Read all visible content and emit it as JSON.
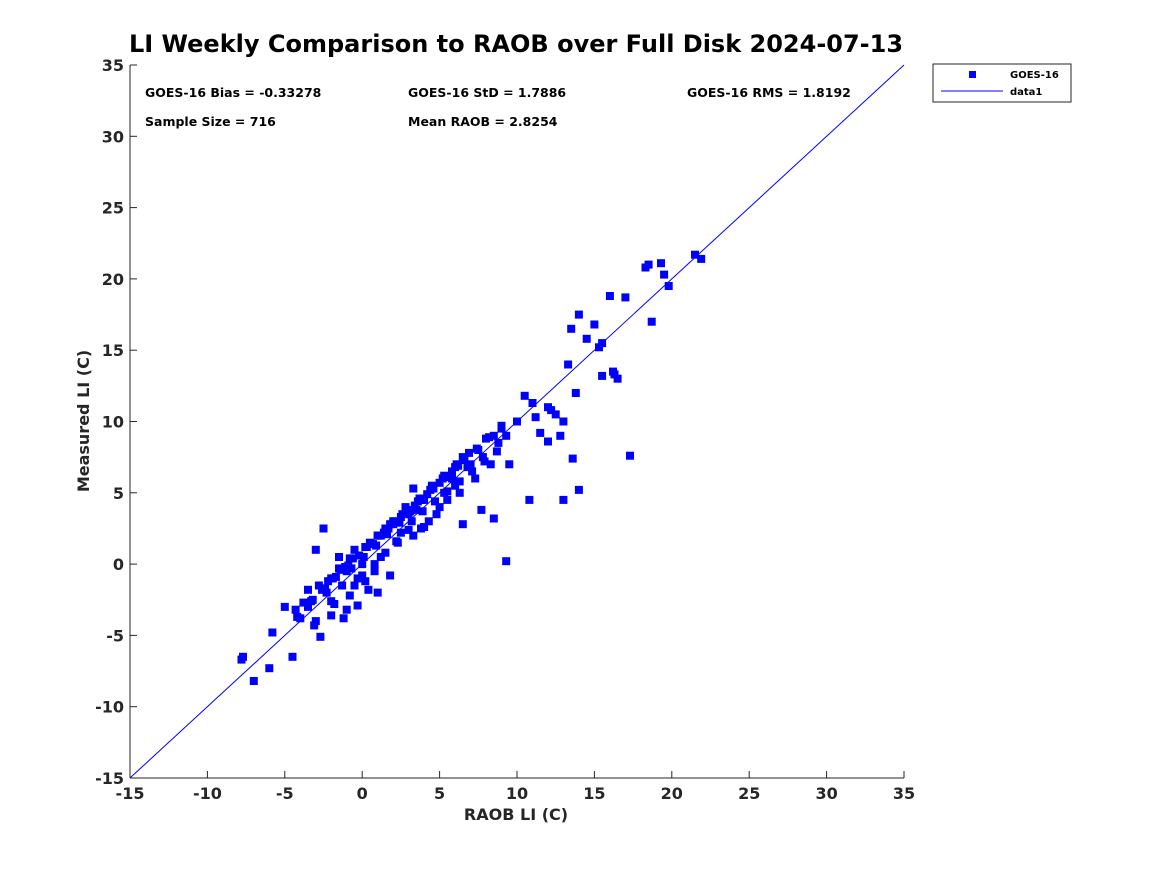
{
  "chart_data": {
    "type": "scatter",
    "title": "LI Weekly Comparison to RAOB over Full Disk 2024-07-13",
    "xlabel": "RAOB LI (C)",
    "ylabel": "Measured LI (C)",
    "xlim": [
      -15,
      35
    ],
    "ylim": [
      -15,
      35
    ],
    "x_ticks": [
      "-15",
      "-10",
      "-5",
      "0",
      "5",
      "10",
      "15",
      "20",
      "25",
      "30",
      "35"
    ],
    "y_ticks": [
      "-15",
      "-10",
      "-5",
      "0",
      "5",
      "10",
      "15",
      "20",
      "25",
      "30",
      "35"
    ],
    "grid": false,
    "legend_position": "outside top-right",
    "stats": {
      "bias": "GOES-16 Bias = -0.33278",
      "std": "GOES-16 StD = 1.7886",
      "rms": "GOES-16 RMS = 1.8192",
      "sample_size": "Sample Size = 716",
      "mean_raob": "Mean RAOB = 2.8254"
    },
    "colors": {
      "points": "#0000ff",
      "line": "#0000ff",
      "axis": "#262626"
    },
    "series": [
      {
        "name": "GOES-16",
        "kind": "scatter",
        "marker": "square",
        "x": [
          -7.8,
          -7.7,
          -7.0,
          -6.0,
          -5.8,
          -4.5,
          -4.2,
          -5.0,
          -4.0,
          -3.5,
          -3.2,
          -3.0,
          -3.0,
          -2.8,
          -2.5,
          -2.3,
          -2.0,
          -1.8,
          -1.5,
          -1.3,
          -1.0,
          -0.8,
          -0.5,
          -0.3,
          0.0,
          0.2,
          0.5,
          0.8,
          1.0,
          1.2,
          1.5,
          1.8,
          2.0,
          2.3,
          2.5,
          2.8,
          3.0,
          3.3,
          3.5,
          3.8,
          4.0,
          4.3,
          4.5,
          4.8,
          5.0,
          5.3,
          5.5,
          5.8,
          6.0,
          6.3,
          6.5,
          6.8,
          7.0,
          7.3,
          7.5,
          7.8,
          8.0,
          8.3,
          8.5,
          8.8,
          9.0,
          9.3,
          9.5,
          10.0,
          10.5,
          11.0,
          11.5,
          12.0,
          12.5,
          13.0,
          13.3,
          13.5,
          13.8,
          14.0,
          14.5,
          15.0,
          15.3,
          15.5,
          16.0,
          16.3,
          16.5,
          17.0,
          17.3,
          18.3,
          18.5,
          18.7,
          19.3,
          19.5,
          19.8,
          21.5,
          21.9,
          9.3,
          13.0,
          14.0,
          10.8,
          8.5,
          7.7,
          6.5,
          4.0,
          3.3,
          -2.7,
          -3.1,
          -1.0,
          -0.3,
          1.0,
          0.4,
          -2.0,
          -1.2,
          -3.5,
          -2.0,
          -0.5,
          0.0,
          0.8,
          1.5,
          2.2,
          3.0,
          -1.5,
          -0.8,
          0.3,
          1.2,
          2.0,
          2.8,
          3.6,
          4.4,
          5.2,
          6.0,
          -4.3,
          -3.8,
          -2.4,
          -1.7,
          -0.9,
          0.6,
          1.7,
          2.5,
          3.4,
          4.2,
          5.0,
          5.8,
          6.6,
          7.4,
          8.2,
          9.0,
          -2.2,
          -1.4,
          -0.6,
          0.2,
          1.0,
          1.8,
          2.6,
          3.2,
          3.9,
          4.7,
          5.5,
          6.3,
          7.1,
          7.9,
          8.7,
          12.0,
          12.8,
          13.6,
          -3.3,
          -2.6,
          -1.9,
          -1.1,
          -0.2,
          0.7,
          1.4,
          2.1,
          2.9,
          3.7,
          4.5,
          5.3,
          6.1,
          6.9,
          11.2,
          12.2,
          15.5,
          16.2,
          -0.7,
          0.1,
          0.9,
          1.6,
          2.4,
          3.1,
          3.9,
          4.6,
          5.4,
          6.2
        ],
        "y": [
          -6.7,
          -6.5,
          -8.2,
          -7.3,
          -4.8,
          -6.5,
          -3.7,
          -3.0,
          -3.8,
          -1.8,
          -2.5,
          -4.0,
          1.0,
          -1.5,
          2.5,
          -2.0,
          -1.0,
          -2.8,
          0.5,
          -1.5,
          -0.5,
          -2.2,
          1.0,
          -1.0,
          0.0,
          -1.2,
          1.5,
          -0.5,
          2.0,
          0.5,
          2.5,
          -0.8,
          3.0,
          1.5,
          2.2,
          4.0,
          3.5,
          2.0,
          3.8,
          2.5,
          4.5,
          3.0,
          5.5,
          3.5,
          4.0,
          5.0,
          4.5,
          6.0,
          5.5,
          5.0,
          7.5,
          6.8,
          7.0,
          6.0,
          8.0,
          7.5,
          8.8,
          7.0,
          9.0,
          8.5,
          9.5,
          9.0,
          7.0,
          10.0,
          11.8,
          11.3,
          9.2,
          11.0,
          10.5,
          10.0,
          14.0,
          16.5,
          12.0,
          17.5,
          15.8,
          16.8,
          15.2,
          15.5,
          18.8,
          13.3,
          13.0,
          18.7,
          7.6,
          20.8,
          21.0,
          17.0,
          21.1,
          20.3,
          19.5,
          21.7,
          21.4,
          0.2,
          4.5,
          5.2,
          4.5,
          3.2,
          3.8,
          2.8,
          2.6,
          5.3,
          -5.1,
          -4.3,
          -3.2,
          -2.9,
          -2.0,
          -1.8,
          -3.6,
          -3.8,
          -3.0,
          -2.6,
          -1.5,
          -0.8,
          0.0,
          0.8,
          1.6,
          2.4,
          -0.3,
          0.4,
          1.2,
          2.0,
          2.8,
          3.6,
          4.4,
          5.2,
          6.0,
          6.8,
          -3.2,
          -2.7,
          -1.7,
          -0.9,
          -0.1,
          1.4,
          2.5,
          3.3,
          4.1,
          4.9,
          5.7,
          6.5,
          7.3,
          8.1,
          8.9,
          9.7,
          -1.2,
          -0.4,
          0.4,
          1.2,
          2.0,
          2.8,
          3.5,
          3.0,
          3.7,
          4.4,
          5.1,
          5.8,
          6.5,
          7.2,
          7.9,
          8.6,
          9.0,
          7.4,
          -2.6,
          -1.8,
          -1.0,
          -0.2,
          0.6,
          1.4,
          2.2,
          3.0,
          3.8,
          4.6,
          5.4,
          6.2,
          7.0,
          7.8,
          10.3,
          10.8,
          13.2,
          13.5,
          -0.3,
          0.5,
          1.3,
          2.1,
          2.9,
          3.7,
          4.5,
          5.3,
          6.1,
          6.9
        ]
      },
      {
        "name": "data1",
        "kind": "line",
        "x": [
          -15,
          35
        ],
        "y": [
          -15,
          35
        ]
      }
    ]
  }
}
